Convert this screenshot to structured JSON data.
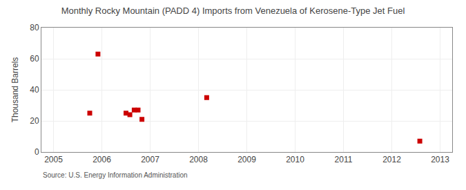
{
  "chart_data": {
    "type": "scatter",
    "title": "Monthly Rocky Mountain (PADD 4) Imports from Venezuela of Kerosene-Type Jet Fuel",
    "ylabel": "Thousand Barrels",
    "annotations": [
      "Source: U.S. Energy Information Administration"
    ],
    "x": [
      2005.75,
      2005.92,
      2006.5,
      2006.58,
      2006.67,
      2006.75,
      2006.83,
      2008.17,
      2012.58
    ],
    "values": [
      25,
      63,
      25,
      24,
      27,
      27,
      21,
      35,
      7
    ],
    "color": "#cc0000",
    "marker": "square",
    "xlim": [
      2004.75,
      2013.25
    ],
    "xticks": [
      2005,
      2006,
      2007,
      2008,
      2009,
      2010,
      2011,
      2012,
      2013
    ],
    "ylim": [
      0,
      80
    ],
    "yticks": [
      0,
      20,
      40,
      60,
      80
    ],
    "grid": true
  }
}
